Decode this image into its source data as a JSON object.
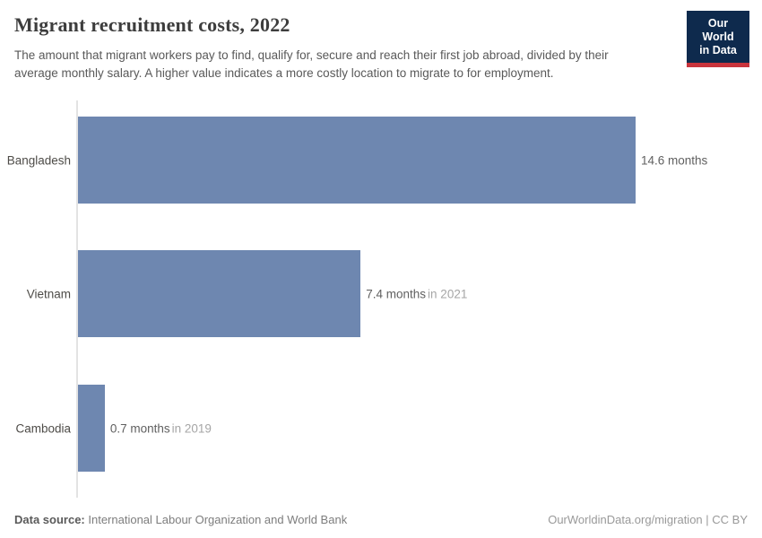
{
  "header": {
    "title": "Migrant recruitment costs, 2022",
    "subtitle_line1": "The amount that migrant workers pay to find, qualify for, secure and reach their first job abroad, divided by their",
    "subtitle_line2": "average monthly salary. A higher value indicates a more costly location to migrate to for employment."
  },
  "logo": {
    "line1": "Our World",
    "line2": "in Data"
  },
  "chart_data": {
    "type": "bar",
    "orientation": "horizontal",
    "title": "Migrant recruitment costs, 2022",
    "categories": [
      "Bangladesh",
      "Vietnam",
      "Cambodia"
    ],
    "values": [
      14.6,
      7.4,
      0.7
    ],
    "value_labels": [
      "14.6 months",
      "7.4 months",
      "0.7 months"
    ],
    "year_notes": [
      "",
      "in 2021",
      "in 2019"
    ],
    "unit": "months",
    "xlim": [
      0,
      14.6
    ],
    "grid": false,
    "legend": "none",
    "bar_color": "#6e87b0"
  },
  "footer": {
    "source_label": "Data source:",
    "source_text": " International Labour Organization and World Bank",
    "right_text": "OurWorldinData.org/migration | CC BY"
  },
  "colors": {
    "bar": "#6e87b0",
    "logo_background": "#0e2a4d",
    "logo_accent_red": "#c9343c",
    "axis_line": "#e3e3e3",
    "title_text": "#3d3d3d",
    "subtitle_text": "#595959",
    "year_note_text": "#a6a6a6"
  }
}
